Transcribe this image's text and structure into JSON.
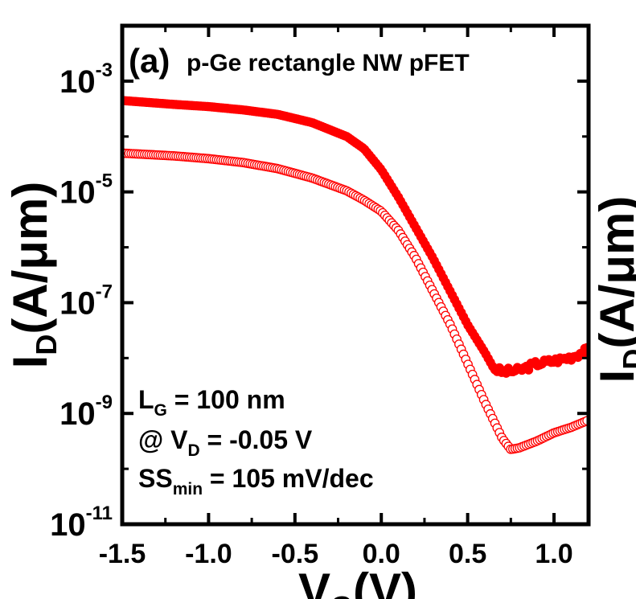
{
  "chart_data": {
    "type": "scatter",
    "panel_label": "(a)",
    "title": "p-Ge rectangle NW pFET",
    "xlabel": {
      "main": "V",
      "sub": "G",
      "unit": "(V)"
    },
    "ylabel": {
      "main": "I",
      "sub": "D",
      "unit": "(A/μm)"
    },
    "xlim": [
      -1.5,
      1.2
    ],
    "ylim_log10": [
      -11,
      -2
    ],
    "yscale": "log",
    "x_ticks": [
      {
        "value": -1.5,
        "label": "-1.5"
      },
      {
        "value": -1.0,
        "label": "-1.0"
      },
      {
        "value": -0.5,
        "label": "-0.5"
      },
      {
        "value": 0.0,
        "label": "0.0"
      },
      {
        "value": 0.5,
        "label": "0.5"
      },
      {
        "value": 1.0,
        "label": "1.0"
      }
    ],
    "y_ticks": [
      {
        "exp": -3,
        "base": "10",
        "sup": "-3"
      },
      {
        "exp": -5,
        "base": "10",
        "sup": "-5"
      },
      {
        "exp": -7,
        "base": "10",
        "sup": "-7"
      },
      {
        "exp": -9,
        "base": "10",
        "sup": "-9"
      },
      {
        "exp": -11,
        "base": "10",
        "sup": "-11"
      }
    ],
    "annotations": [
      {
        "main": "L",
        "sub": "G",
        "rest": " = 100 nm"
      },
      {
        "main": "@ V",
        "sub": "D",
        "rest": " = -0.05 V"
      },
      {
        "main": "SS",
        "sub": "min",
        "rest": " = 105 mV/dec"
      }
    ],
    "series": [
      {
        "marker": "filled-circle",
        "color": "#ff0000",
        "points": [
          [
            -1.5,
            -3.35
          ],
          [
            -1.2,
            -3.42
          ],
          [
            -1.0,
            -3.46
          ],
          [
            -0.8,
            -3.52
          ],
          [
            -0.6,
            -3.6
          ],
          [
            -0.4,
            -3.75
          ],
          [
            -0.2,
            -4.0
          ],
          [
            -0.1,
            -4.22
          ],
          [
            0.0,
            -4.6
          ],
          [
            0.1,
            -5.1
          ],
          [
            0.2,
            -5.65
          ],
          [
            0.3,
            -6.2
          ],
          [
            0.4,
            -6.8
          ],
          [
            0.5,
            -7.4
          ],
          [
            0.6,
            -7.9
          ],
          [
            0.65,
            -8.18
          ],
          [
            0.7,
            -8.25
          ],
          [
            0.8,
            -8.22
          ],
          [
            0.9,
            -8.1
          ],
          [
            1.0,
            -8.05
          ],
          [
            1.1,
            -7.98
          ],
          [
            1.2,
            -7.85
          ]
        ]
      },
      {
        "marker": "open-circle",
        "color": "#ff0000",
        "points": [
          [
            -1.5,
            -4.3
          ],
          [
            -1.2,
            -4.35
          ],
          [
            -1.0,
            -4.4
          ],
          [
            -0.8,
            -4.47
          ],
          [
            -0.6,
            -4.58
          ],
          [
            -0.4,
            -4.75
          ],
          [
            -0.2,
            -4.98
          ],
          [
            -0.1,
            -5.15
          ],
          [
            0.0,
            -5.35
          ],
          [
            0.1,
            -5.7
          ],
          [
            0.2,
            -6.2
          ],
          [
            0.3,
            -6.8
          ],
          [
            0.4,
            -7.4
          ],
          [
            0.5,
            -8.1
          ],
          [
            0.6,
            -8.8
          ],
          [
            0.7,
            -9.45
          ],
          [
            0.75,
            -9.65
          ],
          [
            0.8,
            -9.62
          ],
          [
            0.9,
            -9.5
          ],
          [
            1.0,
            -9.35
          ],
          [
            1.1,
            -9.25
          ],
          [
            1.2,
            -9.12
          ]
        ]
      }
    ]
  }
}
